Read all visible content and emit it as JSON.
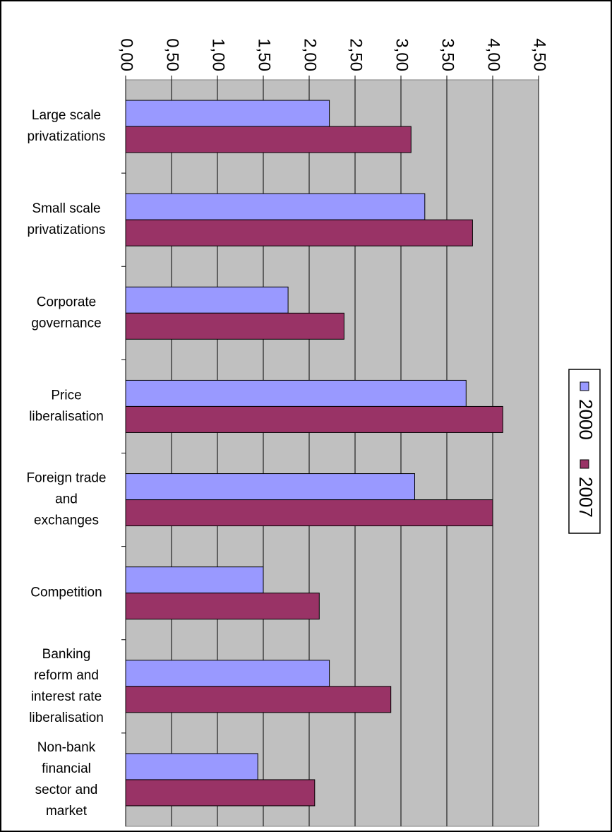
{
  "chart_data": {
    "type": "bar",
    "orientation": "horizontal",
    "categories": [
      "Large scale privatizations",
      "Small scale privatizations",
      "Corporate governance",
      "Price liberalisation",
      "Foreign trade and exchanges",
      "Competition",
      "Banking reform and interest rate liberalisation",
      "Non-bank financial sector and market"
    ],
    "category_label_lines": [
      [
        "Large scale",
        "privatizations"
      ],
      [
        "Small scale",
        "privatizations"
      ],
      [
        "Corporate",
        "governance"
      ],
      [
        "Price",
        "liberalisation"
      ],
      [
        "Foreign trade",
        "and",
        "exchanges"
      ],
      [
        "Competition"
      ],
      [
        "Banking",
        "reform and",
        "interest rate",
        "liberalisation"
      ],
      [
        "Non-bank",
        "financial",
        "sector and",
        "market"
      ]
    ],
    "series": [
      {
        "name": "2000",
        "color": "#9999ff",
        "values": [
          2.22,
          3.26,
          1.77,
          3.71,
          3.15,
          1.5,
          2.22,
          1.44
        ]
      },
      {
        "name": "2007",
        "color": "#993366",
        "values": [
          3.11,
          3.78,
          2.38,
          4.11,
          4.0,
          2.11,
          2.89,
          2.06
        ]
      }
    ],
    "x_ticks": [
      "0,00",
      "0,50",
      "1,00",
      "1,50",
      "2,00",
      "2,50",
      "3,00",
      "3,50",
      "4,00",
      "4,50"
    ],
    "xlim": [
      0,
      4.5
    ],
    "tick_step": 0.5,
    "grid": true,
    "plot_background": "#c0c0c0",
    "legend_position": "right",
    "tick_label_rotation": "90deg"
  }
}
